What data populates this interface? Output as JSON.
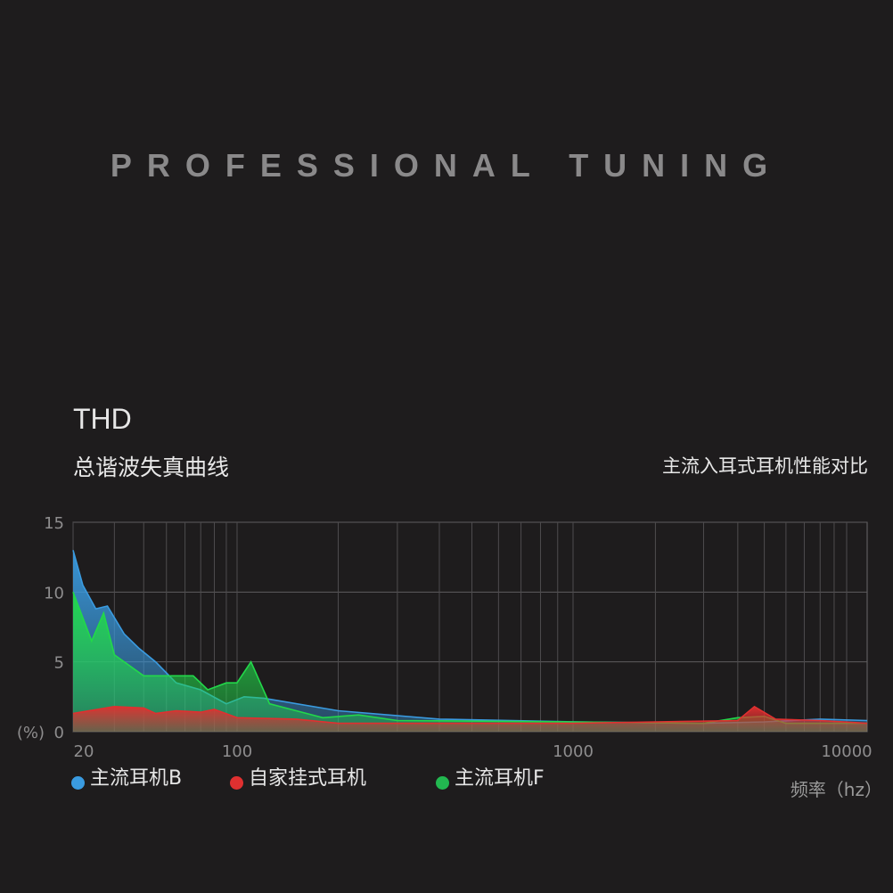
{
  "hero_title": "PROFESSIONAL TUNING",
  "chart_data": {
    "type": "area",
    "title": "THD",
    "subtitle": "总谐波失真曲线",
    "annotation": "主流入耳式耳机性能对比",
    "ylabel": "(%)",
    "xlabel": "频率（hz）",
    "xscale": "log",
    "xlim": [
      20,
      12500
    ],
    "ylim": [
      0,
      15
    ],
    "yticks": [
      0,
      5,
      10,
      15
    ],
    "xtick_labels": [
      "20",
      "100",
      "1000",
      "10000"
    ],
    "xticks": [
      20,
      100,
      1000,
      10000
    ],
    "grid": true,
    "legend_placement": "bottom",
    "series": [
      {
        "name": "主流耳机B",
        "color": "#3a9be0",
        "x": [
          20,
          22,
          25,
          28,
          33,
          38,
          45,
          55,
          70,
          90,
          105,
          120,
          200,
          400,
          1000,
          3000,
          5000,
          8000,
          12500
        ],
        "y": [
          13,
          10.5,
          8.8,
          9,
          7,
          6,
          5,
          3.5,
          3,
          2,
          2.5,
          2.4,
          1.5,
          0.9,
          0.7,
          0.6,
          0.7,
          0.9,
          0.8
        ]
      },
      {
        "name": "主流耳机F",
        "color": "#22d84a",
        "x": [
          20,
          24,
          27,
          30,
          40,
          55,
          65,
          75,
          90,
          100,
          110,
          125,
          150,
          180,
          230,
          300,
          1000,
          3000,
          4000,
          5000,
          6000,
          12500
        ],
        "y": [
          10,
          6.5,
          8.5,
          5.5,
          4,
          4,
          4,
          3,
          3.5,
          3.5,
          5,
          2,
          1.5,
          1,
          1.2,
          0.8,
          0.7,
          0.6,
          1.0,
          1.1,
          0.6,
          0.6
        ]
      },
      {
        "name": "自家挂式耳机",
        "color": "#e03030",
        "x": [
          20,
          30,
          40,
          45,
          55,
          70,
          80,
          100,
          150,
          200,
          1000,
          2000,
          4000,
          4600,
          5500,
          8000,
          12500
        ],
        "y": [
          1.3,
          1.8,
          1.7,
          1.3,
          1.5,
          1.4,
          1.6,
          1.0,
          0.9,
          0.6,
          0.6,
          0.7,
          0.8,
          1.8,
          0.9,
          0.8,
          0.6
        ]
      }
    ]
  },
  "legend_order": [
    0,
    2,
    1
  ]
}
